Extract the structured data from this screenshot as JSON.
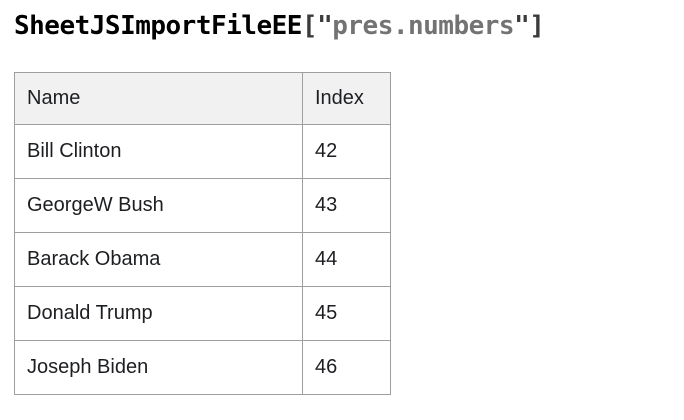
{
  "title": {
    "function_name": "SheetJSImportFileEE",
    "open_punct": "[\"",
    "string_value": "pres.numbers",
    "close_punct": "\"]",
    "full_text": "SheetJSImportFileEE[\"pres.numbers\"]"
  },
  "colors": {
    "title_name": "#000000",
    "title_punctuation": "#3b3b3b",
    "title_string": "#737373",
    "table_border": "#9e9e9e",
    "header_background": "#f1f1f1",
    "cell_background": "#ffffff",
    "cell_text": "#1c1e21",
    "page_background": "#ffffff"
  },
  "table": {
    "columns": [
      "Name",
      "Index"
    ],
    "rows": [
      {
        "name": "Bill Clinton",
        "index": "42"
      },
      {
        "name": "GeorgeW Bush",
        "index": "43"
      },
      {
        "name": "Barack Obama",
        "index": "44"
      },
      {
        "name": "Donald Trump",
        "index": "45"
      },
      {
        "name": "Joseph Biden",
        "index": "46"
      }
    ]
  }
}
